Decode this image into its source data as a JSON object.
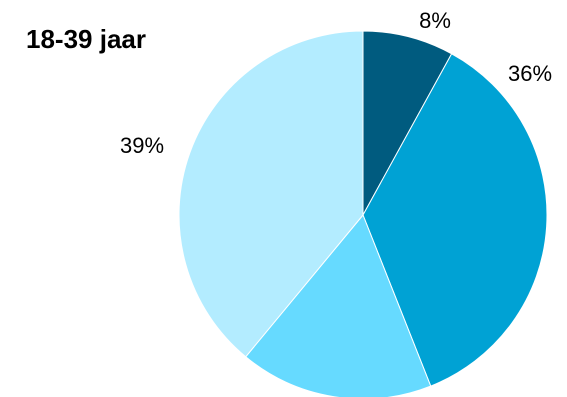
{
  "chart_data": {
    "type": "pie",
    "title": "18-39 jaar",
    "slices": [
      {
        "value": 8,
        "label": "8%",
        "color": "#005B7F"
      },
      {
        "value": 36,
        "label": "36%",
        "color": "#00A2D4"
      },
      {
        "value": 17,
        "label": "",
        "color": "#66DAFF"
      },
      {
        "value": 39,
        "label": "39%",
        "color": "#B3ECFF"
      }
    ],
    "start": "12 o'clock",
    "direction": "clockwise",
    "legend": "none"
  }
}
